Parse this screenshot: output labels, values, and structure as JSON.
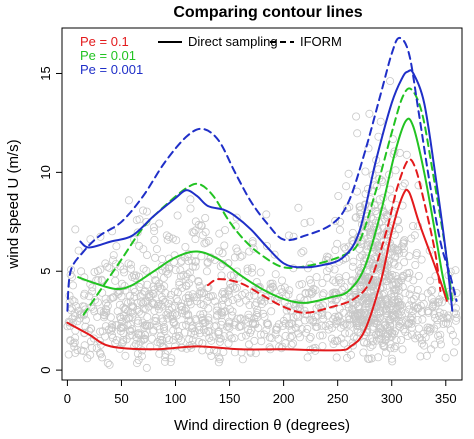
{
  "chart_data": {
    "type": "line",
    "title": "Comparing contour lines",
    "xlabel": "Wind direction  θ  (degrees)",
    "ylabel": "wind speed U (m/s)",
    "xlim": [
      -5,
      365
    ],
    "ylim": [
      -0.5,
      17.3
    ],
    "xticks": [
      0,
      50,
      100,
      150,
      200,
      250,
      300,
      350
    ],
    "yticks": [
      0,
      5,
      10,
      15
    ],
    "grid": false,
    "legend": {
      "placement": "top-left",
      "levels": [
        {
          "label": "Pe =  0.1",
          "color": "#e31a1c"
        },
        {
          "label": "Pe =  0.01",
          "color": "#22c322"
        },
        {
          "label": "Pe =  0.001",
          "color": "#1f2fc8"
        }
      ],
      "styles": [
        {
          "label": "Direct sampling",
          "dash": "solid"
        },
        {
          "label": "IFORM",
          "dash": "dashed"
        }
      ]
    },
    "scatter_color": "#c8c8c8",
    "series": [
      {
        "level": "0.1",
        "method": "Direct sampling",
        "color": "#e31a1c",
        "dash": "solid",
        "points": [
          [
            0,
            2.4
          ],
          [
            20,
            1.8
          ],
          [
            40,
            1.2
          ],
          [
            80,
            1.05
          ],
          [
            120,
            1.2
          ],
          [
            160,
            1.05
          ],
          [
            200,
            1.05
          ],
          [
            250,
            1.0
          ],
          [
            262,
            1.2
          ],
          [
            275,
            2.0
          ],
          [
            290,
            4.5
          ],
          [
            300,
            7.0
          ],
          [
            310,
            8.8
          ],
          [
            316,
            9.0
          ],
          [
            325,
            7.5
          ],
          [
            335,
            6.0
          ],
          [
            345,
            4.5
          ],
          [
            351,
            3.5
          ]
        ]
      },
      {
        "level": "0.1",
        "method": "IFORM",
        "color": "#e31a1c",
        "dash": "dashed",
        "points": [
          [
            130,
            4.3
          ],
          [
            140,
            4.6
          ],
          [
            160,
            4.4
          ],
          [
            180,
            3.8
          ],
          [
            200,
            3.2
          ],
          [
            220,
            2.9
          ],
          [
            245,
            3.2
          ],
          [
            265,
            3.6
          ],
          [
            280,
            4.5
          ],
          [
            295,
            7.0
          ],
          [
            305,
            9.2
          ],
          [
            315,
            10.6
          ],
          [
            322,
            10.2
          ],
          [
            330,
            8.5
          ],
          [
            340,
            6.0
          ],
          [
            345,
            4.0
          ]
        ]
      },
      {
        "level": "0.01",
        "method": "Direct sampling",
        "color": "#22c322",
        "dash": "solid",
        "points": [
          [
            10,
            4.7
          ],
          [
            25,
            4.4
          ],
          [
            45,
            4.1
          ],
          [
            60,
            4.3
          ],
          [
            80,
            5.0
          ],
          [
            100,
            5.7
          ],
          [
            120,
            6.0
          ],
          [
            140,
            5.6
          ],
          [
            160,
            4.8
          ],
          [
            180,
            4.1
          ],
          [
            200,
            3.6
          ],
          [
            220,
            3.4
          ],
          [
            245,
            3.7
          ],
          [
            260,
            4.0
          ],
          [
            275,
            5.2
          ],
          [
            290,
            8.0
          ],
          [
            303,
            11.0
          ],
          [
            313,
            12.6
          ],
          [
            320,
            12.3
          ],
          [
            330,
            10.0
          ],
          [
            340,
            7.0
          ],
          [
            347,
            4.8
          ],
          [
            352,
            3.6
          ]
        ]
      },
      {
        "level": "0.01",
        "method": "IFORM",
        "color": "#22c322",
        "dash": "dashed",
        "points": [
          [
            15,
            2.8
          ],
          [
            30,
            4.0
          ],
          [
            50,
            5.6
          ],
          [
            70,
            7.2
          ],
          [
            90,
            8.3
          ],
          [
            110,
            9.2
          ],
          [
            122,
            9.4
          ],
          [
            135,
            8.8
          ],
          [
            150,
            7.5
          ],
          [
            165,
            6.5
          ],
          [
            180,
            5.8
          ],
          [
            200,
            5.2
          ],
          [
            225,
            5.3
          ],
          [
            255,
            5.8
          ],
          [
            270,
            6.5
          ],
          [
            285,
            9.0
          ],
          [
            300,
            12.0
          ],
          [
            310,
            13.8
          ],
          [
            318,
            14.2
          ],
          [
            328,
            13.0
          ],
          [
            338,
            10.0
          ],
          [
            350,
            6.0
          ],
          [
            356,
            3.5
          ]
        ]
      },
      {
        "level": "0.001",
        "method": "Direct sampling",
        "color": "#1f2fc8",
        "dash": "solid",
        "points": [
          [
            12,
            6.5
          ],
          [
            20,
            6.2
          ],
          [
            40,
            6.5
          ],
          [
            60,
            6.8
          ],
          [
            80,
            7.8
          ],
          [
            100,
            8.7
          ],
          [
            110,
            9.1
          ],
          [
            120,
            8.8
          ],
          [
            130,
            8.3
          ],
          [
            145,
            8.1
          ],
          [
            155,
            7.8
          ],
          [
            170,
            7.1
          ],
          [
            185,
            6.2
          ],
          [
            200,
            5.4
          ],
          [
            215,
            5.2
          ],
          [
            235,
            5.3
          ],
          [
            255,
            5.7
          ],
          [
            270,
            7.0
          ],
          [
            285,
            10.5
          ],
          [
            300,
            13.5
          ],
          [
            310,
            14.8
          ],
          [
            315,
            15.1
          ],
          [
            320,
            15.0
          ],
          [
            330,
            13.5
          ],
          [
            340,
            10.0
          ],
          [
            350,
            6.0
          ],
          [
            356,
            3.0
          ]
        ]
      },
      {
        "level": "0.001",
        "method": "IFORM",
        "color": "#1f2fc8",
        "dash": "dashed",
        "points": [
          [
            0,
            3.0
          ],
          [
            3,
            5.0
          ],
          [
            15,
            6.0
          ],
          [
            30,
            6.8
          ],
          [
            50,
            7.5
          ],
          [
            70,
            8.8
          ],
          [
            90,
            10.5
          ],
          [
            110,
            11.8
          ],
          [
            125,
            12.2
          ],
          [
            140,
            11.6
          ],
          [
            155,
            10.0
          ],
          [
            170,
            8.5
          ],
          [
            185,
            7.4
          ],
          [
            200,
            6.6
          ],
          [
            220,
            6.8
          ],
          [
            245,
            7.4
          ],
          [
            260,
            8.5
          ],
          [
            275,
            11.0
          ],
          [
            290,
            14.0
          ],
          [
            300,
            16.0
          ],
          [
            307,
            16.8
          ],
          [
            316,
            16.0
          ],
          [
            325,
            13.0
          ],
          [
            335,
            9.5
          ],
          [
            345,
            6.5
          ],
          [
            354,
            4.8
          ],
          [
            360,
            3.5
          ]
        ]
      }
    ]
  }
}
